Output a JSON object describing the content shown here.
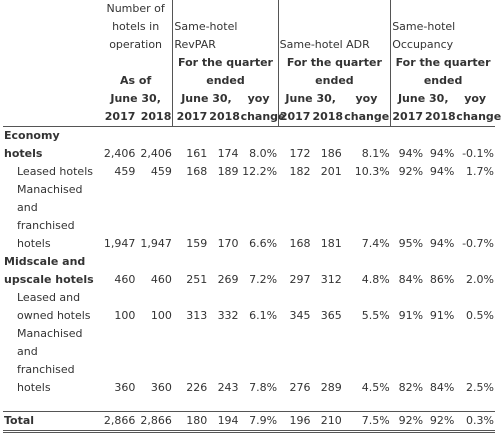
{
  "header": {
    "hotels_group": "Number of hotels in operation",
    "revpar_group": "Same-hotel RevPAR",
    "adr_group": "Same-hotel ADR",
    "occ_group": "Same-hotel Occupancy",
    "quarter_ended": "For the quarter ended",
    "as_of": "As of",
    "june30": "June 30,",
    "yoy": "yoy",
    "y2017": "2017",
    "y2018": "2018",
    "change": "change"
  },
  "rows": [
    {
      "label": "Economy hotels",
      "bold": true,
      "v": [
        "2,406",
        "2,406",
        "161",
        "174",
        "8.0%",
        "172",
        "186",
        "8.1%",
        "94%",
        "94%",
        "-0.1%"
      ]
    },
    {
      "label": "Leased hotels",
      "indent": true,
      "v": [
        "459",
        "459",
        "168",
        "189",
        "12.2%",
        "182",
        "201",
        "10.3%",
        "92%",
        "94%",
        "1.7%"
      ]
    },
    {
      "label": "Manachised and franchised hotels",
      "indent": true,
      "v": [
        "1,947",
        "1,947",
        "159",
        "170",
        "6.6%",
        "168",
        "181",
        "7.4%",
        "95%",
        "94%",
        "-0.7%"
      ]
    },
    {
      "label": "Midscale and upscale hotels",
      "bold": true,
      "v": [
        "460",
        "460",
        "251",
        "269",
        "7.2%",
        "297",
        "312",
        "4.8%",
        "84%",
        "86%",
        "2.0%"
      ]
    },
    {
      "label": "Leased and owned hotels",
      "indent": true,
      "v": [
        "100",
        "100",
        "313",
        "332",
        "6.1%",
        "345",
        "365",
        "5.5%",
        "91%",
        "91%",
        "0.5%"
      ]
    },
    {
      "label": "Manachised and franchised hotels",
      "indent": true,
      "v": [
        "360",
        "360",
        "226",
        "243",
        "7.8%",
        "276",
        "289",
        "4.5%",
        "82%",
        "84%",
        "2.5%"
      ]
    }
  ],
  "total": {
    "label": "Total",
    "v": [
      "2,866",
      "2,866",
      "180",
      "194",
      "7.9%",
      "196",
      "210",
      "7.5%",
      "92%",
      "92%",
      "0.3%"
    ]
  }
}
